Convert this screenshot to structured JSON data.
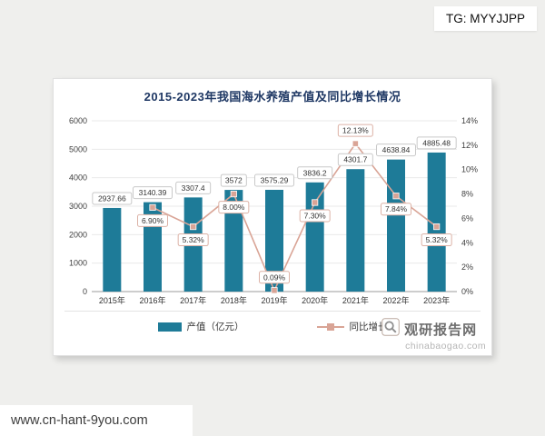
{
  "badge": {
    "text": "TG: MYYJJPP"
  },
  "footer": {
    "url": "www.cn-hant-9you.com"
  },
  "watermark": {
    "name": "观研报告网",
    "domain": "chinabaogao.com"
  },
  "chart_data": {
    "type": "bar+line",
    "title": "2015-2023年我国海水养殖产值及同比增长情况",
    "categories": [
      "2015年",
      "2016年",
      "2017年",
      "2018年",
      "2019年",
      "2020年",
      "2021年",
      "2022年",
      "2023年"
    ],
    "series": [
      {
        "name": "产值（亿元）",
        "type": "bar",
        "axis": "left",
        "color": "#1e7b98",
        "values": [
          2937.66,
          3140.39,
          3307.4,
          3572,
          3575.29,
          3836.2,
          4301.7,
          4638.84,
          4885.48
        ],
        "labels": [
          "2937.66",
          "3140.39",
          "3307.4",
          "3572",
          "3575.29",
          "3836.2",
          "4301.7",
          "4638.84",
          "4885.48"
        ]
      },
      {
        "name": "同比增长",
        "type": "line",
        "axis": "right",
        "color": "#d9a496",
        "values": [
          null,
          6.9,
          5.32,
          8.0,
          0.09,
          7.3,
          12.13,
          7.84,
          5.32
        ],
        "labels": [
          null,
          "6.90%",
          "5.32%",
          "8.00%",
          "0.09%",
          "7.30%",
          "12.13%",
          "7.84%",
          "5.32%"
        ],
        "label_position": [
          null,
          "below",
          "below",
          "below",
          "above",
          "below",
          "above",
          "below",
          "below"
        ]
      }
    ],
    "left_axis": {
      "min": 0,
      "max": 6000,
      "step": 1000,
      "ticks": [
        "0",
        "1000",
        "2000",
        "3000",
        "4000",
        "5000",
        "6000"
      ]
    },
    "right_axis": {
      "min": 0,
      "max": 14,
      "step": 2,
      "ticks": [
        "0%",
        "2%",
        "4%",
        "6%",
        "8%",
        "10%",
        "12%",
        "14%"
      ]
    },
    "legend_position": "bottom",
    "grid": true
  }
}
